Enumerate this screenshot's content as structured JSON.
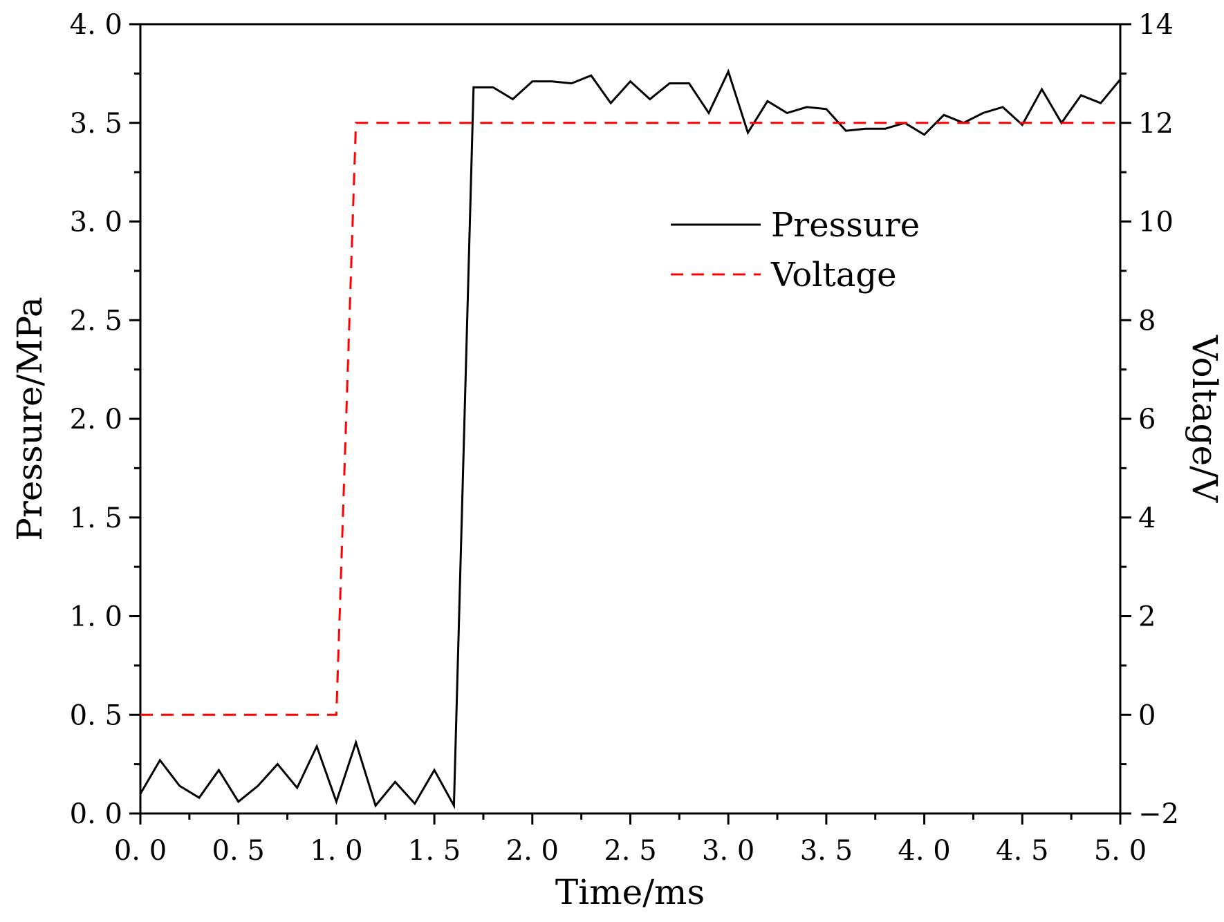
{
  "chart_data": {
    "type": "line",
    "title": "",
    "xlabel": "Time/ms",
    "ylabel": "Pressure/MPa",
    "y2label": "Voltage/V",
    "xlim": [
      0,
      5
    ],
    "ylim": [
      0,
      4
    ],
    "y2lim": [
      -2,
      14
    ],
    "x_ticks": [
      "0. 0",
      "0. 5",
      "1. 0",
      "1. 5",
      "2. 0",
      "2. 5",
      "3. 0",
      "3. 5",
      "4. 0",
      "4. 5",
      "5. 0"
    ],
    "y_ticks": [
      "0. 0",
      "0. 5",
      "1. 0",
      "1. 5",
      "2. 0",
      "2. 5",
      "3. 0",
      "3. 5",
      "4. 0"
    ],
    "y2_ticks": [
      "−2",
      "0",
      "2",
      "4",
      "6",
      "8",
      "10",
      "12",
      "14"
    ],
    "legend_position": "upper-center-right",
    "series": [
      {
        "name": "Pressure",
        "axis": "left",
        "color": "#000000",
        "style": "solid",
        "x": [
          0,
          0.1,
          0.2,
          0.3,
          0.4,
          0.5,
          0.6,
          0.7,
          0.8,
          0.9,
          1.0,
          1.1,
          1.2,
          1.3,
          1.4,
          1.5,
          1.6,
          1.7,
          1.8,
          1.9,
          2.0,
          2.1,
          2.2,
          2.3,
          2.4,
          2.5,
          2.6,
          2.7,
          2.8,
          2.9,
          3.0,
          3.1,
          3.2,
          3.3,
          3.4,
          3.5,
          3.6,
          3.7,
          3.8,
          3.9,
          4.0,
          4.1,
          4.2,
          4.3,
          4.4,
          4.5,
          4.6,
          4.7,
          4.8,
          4.9,
          5.0
        ],
        "values": [
          0.1,
          0.27,
          0.14,
          0.08,
          0.22,
          0.06,
          0.14,
          0.25,
          0.13,
          0.34,
          0.06,
          0.36,
          0.04,
          0.16,
          0.05,
          0.22,
          0.04,
          3.68,
          3.68,
          3.62,
          3.71,
          3.71,
          3.7,
          3.74,
          3.6,
          3.71,
          3.62,
          3.7,
          3.7,
          3.55,
          3.76,
          3.45,
          3.61,
          3.55,
          3.58,
          3.57,
          3.46,
          3.47,
          3.47,
          3.5,
          3.44,
          3.54,
          3.5,
          3.55,
          3.58,
          3.49,
          3.67,
          3.5,
          3.64,
          3.6,
          3.72
        ]
      },
      {
        "name": "Voltage",
        "axis": "right",
        "color": "#ff0000",
        "style": "dashed",
        "x": [
          0,
          1.0,
          1.1,
          5.0
        ],
        "values": [
          0,
          0,
          12,
          12
        ]
      }
    ]
  }
}
